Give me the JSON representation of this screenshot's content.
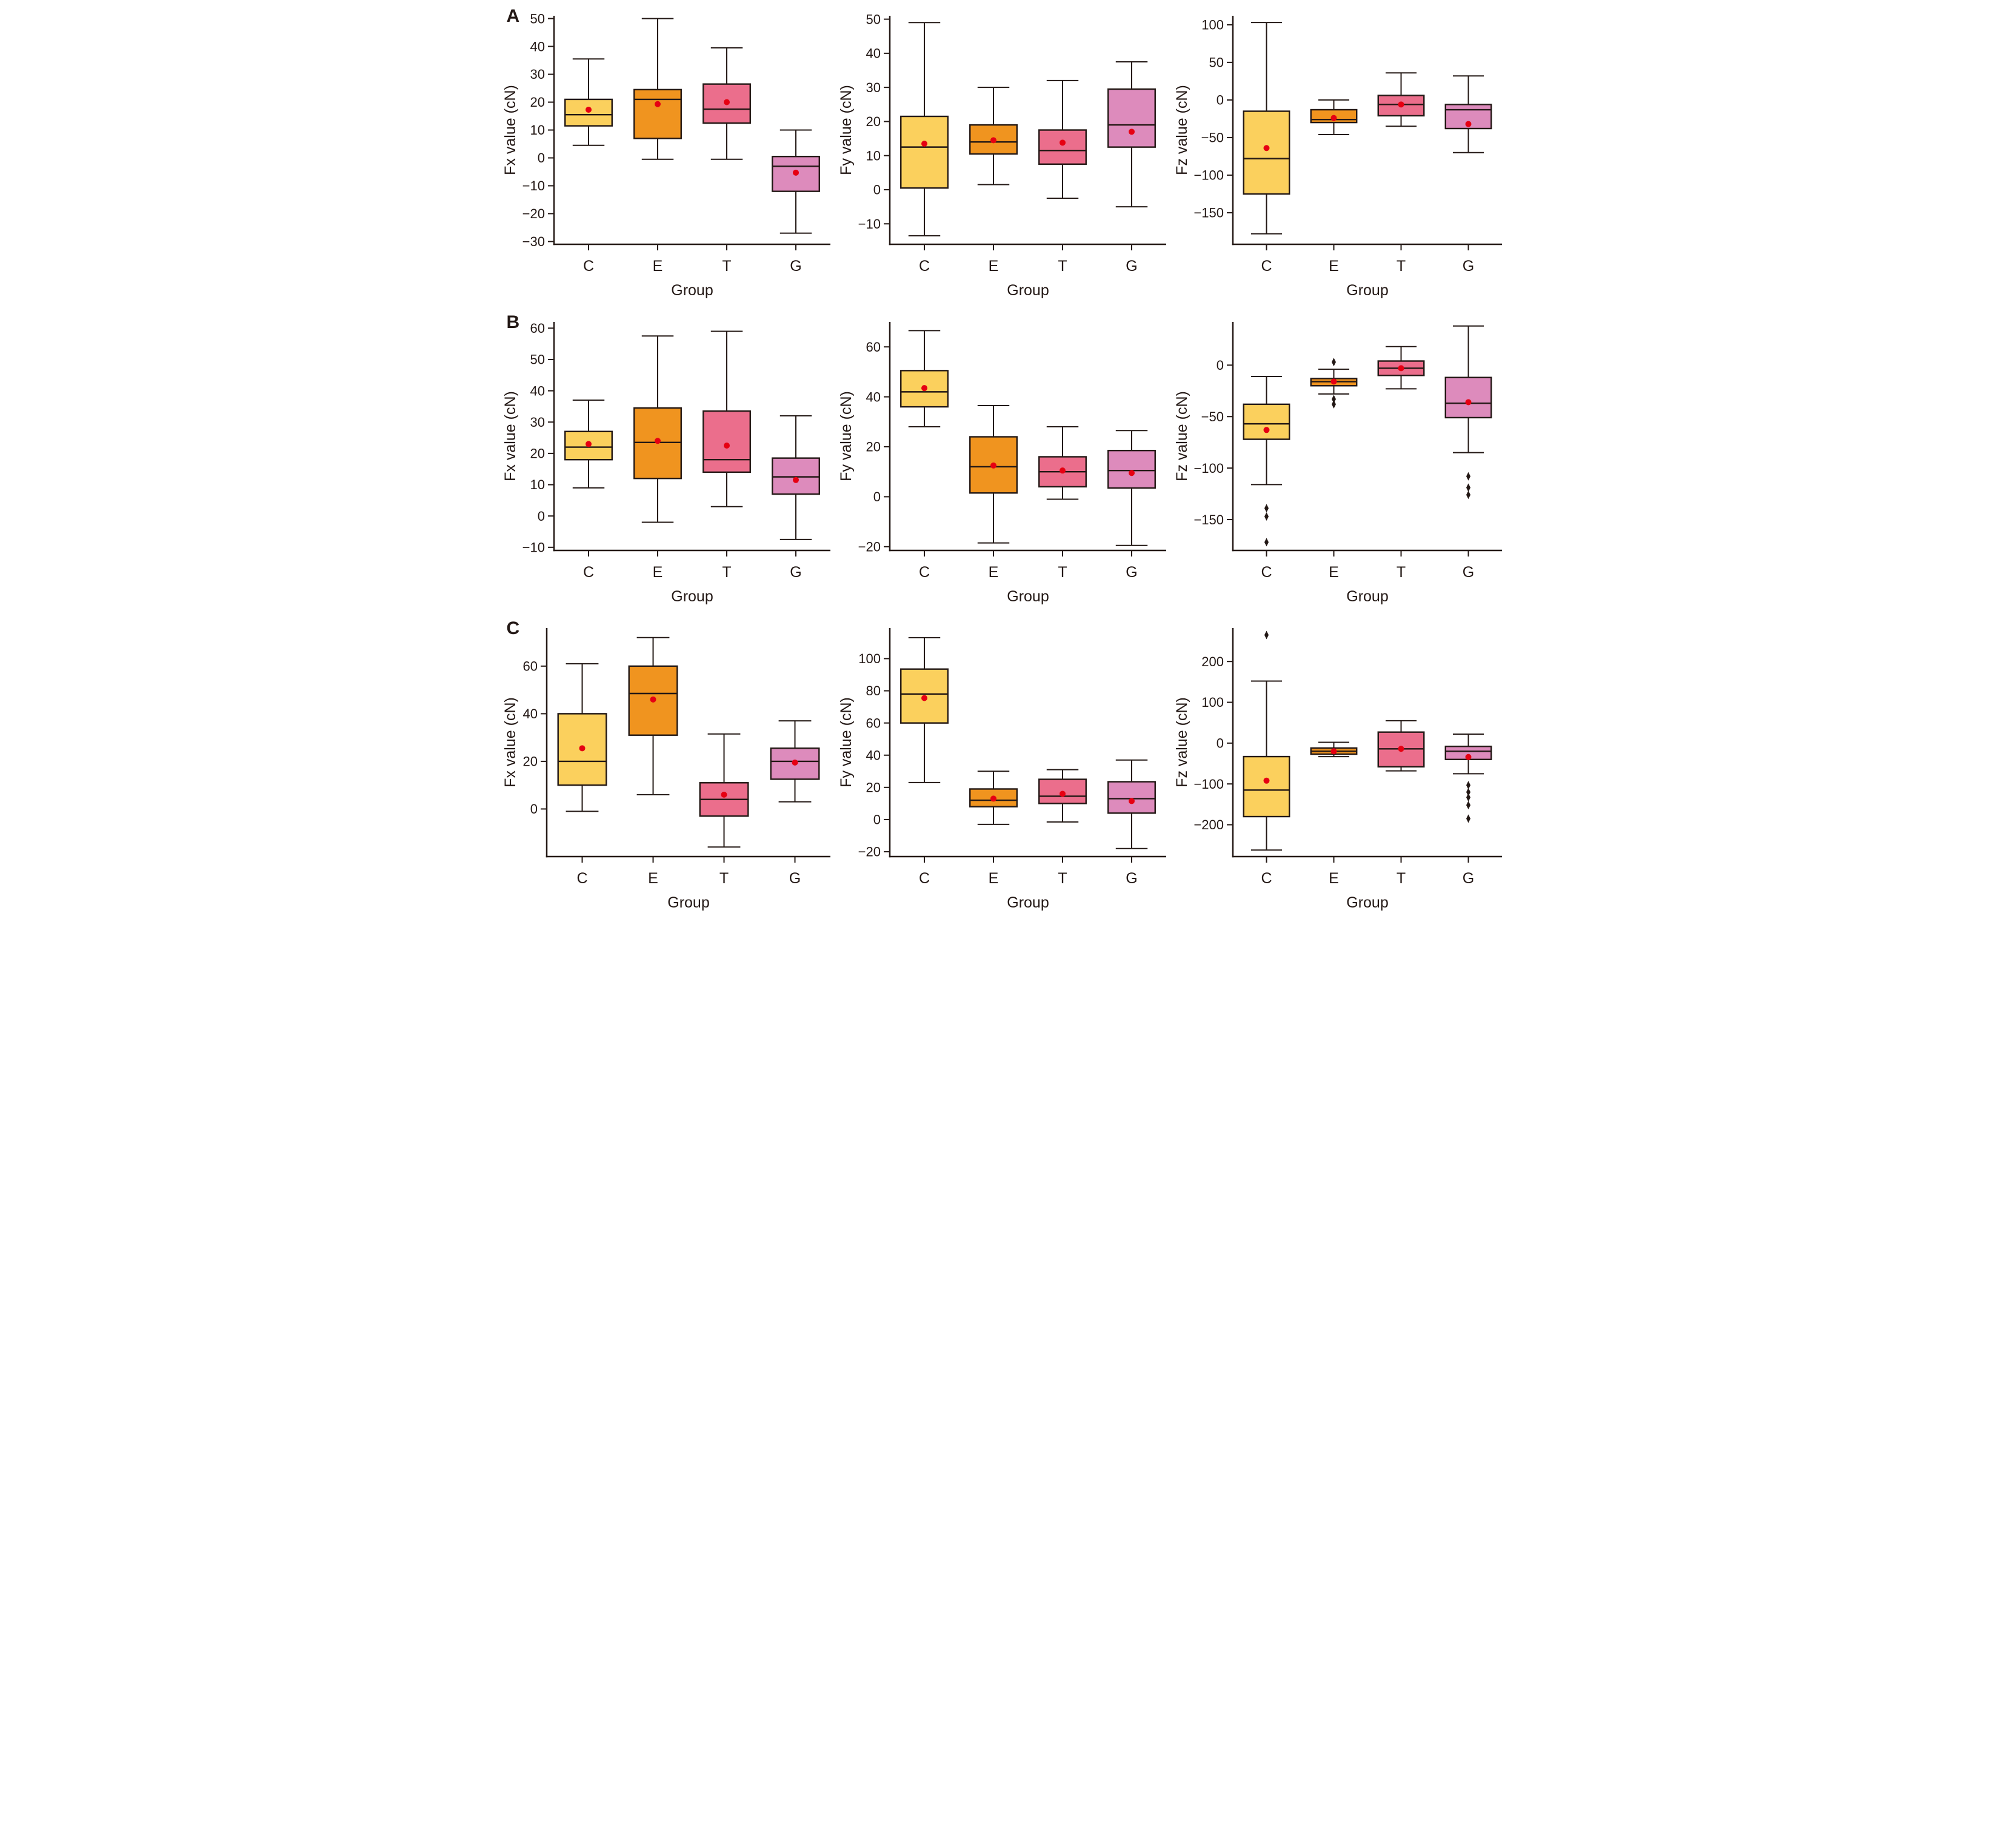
{
  "figure": {
    "background": "#ffffff",
    "rows": [
      {
        "label": "A"
      },
      {
        "label": "B"
      },
      {
        "label": "C"
      }
    ]
  },
  "colors": {
    "box_fills": {
      "C": "#FBD05D",
      "E": "#F0941F",
      "T": "#EB6E8C",
      "G": "#DD8BBC"
    },
    "box_edge": "#231815",
    "axis": "#231815",
    "text": "#231815",
    "mean_dot": "#E60012",
    "outlier": "#231815"
  },
  "chart_data": [
    {
      "id": "A-Fx",
      "row": "A",
      "type": "box",
      "xlabel": "Group",
      "ylabel": "Fx value (cN)",
      "categories": [
        "C",
        "E",
        "T",
        "G"
      ],
      "ylim": [
        -31,
        51
      ],
      "yticks": [
        -30,
        -20,
        -10,
        0,
        10,
        20,
        30,
        40,
        50
      ],
      "grid": false,
      "boxes": [
        {
          "group": "C",
          "whislo": 4.5,
          "q1": 11.5,
          "med": 15.5,
          "q3": 21,
          "whishi": 35.5,
          "mean": 17.3,
          "outliers": []
        },
        {
          "group": "E",
          "whislo": -0.5,
          "q1": 7,
          "med": 21,
          "q3": 24.5,
          "whishi": 50,
          "mean": 19.3,
          "outliers": []
        },
        {
          "group": "T",
          "whislo": -0.5,
          "q1": 12.5,
          "med": 17.5,
          "q3": 26.5,
          "whishi": 39.5,
          "mean": 20,
          "outliers": []
        },
        {
          "group": "G",
          "whislo": -27,
          "q1": -12,
          "med": -3,
          "q3": 0.5,
          "whishi": 10,
          "mean": -5.3,
          "outliers": []
        }
      ]
    },
    {
      "id": "A-Fy",
      "row": "A",
      "type": "box",
      "xlabel": "Group",
      "ylabel": "Fy value (cN)",
      "categories": [
        "C",
        "E",
        "T",
        "G"
      ],
      "ylim": [
        -16,
        51
      ],
      "yticks": [
        -10,
        0,
        10,
        20,
        30,
        40,
        50
      ],
      "grid": false,
      "boxes": [
        {
          "group": "C",
          "whislo": -13.5,
          "q1": 0.5,
          "med": 12.5,
          "q3": 21.5,
          "whishi": 49,
          "mean": 13.5,
          "outliers": []
        },
        {
          "group": "E",
          "whislo": 1.5,
          "q1": 10.5,
          "med": 14,
          "q3": 19,
          "whishi": 30,
          "mean": 14.5,
          "outliers": []
        },
        {
          "group": "T",
          "whislo": -2.5,
          "q1": 7.5,
          "med": 11.5,
          "q3": 17.5,
          "whishi": 32,
          "mean": 13.8,
          "outliers": []
        },
        {
          "group": "G",
          "whislo": -5,
          "q1": 12.5,
          "med": 19,
          "q3": 29.5,
          "whishi": 37.5,
          "mean": 17,
          "outliers": []
        }
      ]
    },
    {
      "id": "A-Fz",
      "row": "A",
      "type": "box",
      "xlabel": "Group",
      "ylabel": "Fz value (cN)",
      "categories": [
        "C",
        "E",
        "T",
        "G"
      ],
      "ylim": [
        -192,
        112
      ],
      "yticks": [
        -150,
        -100,
        -50,
        0,
        50,
        100
      ],
      "grid": false,
      "boxes": [
        {
          "group": "C",
          "whislo": -178,
          "q1": -125,
          "med": -78,
          "q3": -15,
          "whishi": 103,
          "mean": -64,
          "outliers": []
        },
        {
          "group": "E",
          "whislo": -46,
          "q1": -30,
          "med": -26,
          "q3": -13,
          "whishi": 0,
          "mean": -24,
          "outliers": []
        },
        {
          "group": "T",
          "whislo": -35,
          "q1": -21,
          "med": -6,
          "q3": 6,
          "whishi": 36,
          "mean": -6,
          "outliers": []
        },
        {
          "group": "G",
          "whislo": -70,
          "q1": -38,
          "med": -13,
          "q3": -6,
          "whishi": 32,
          "mean": -32,
          "outliers": []
        }
      ]
    },
    {
      "id": "B-Fx",
      "row": "B",
      "type": "box",
      "xlabel": "Group",
      "ylabel": "Fx value (cN)",
      "categories": [
        "C",
        "E",
        "T",
        "G"
      ],
      "ylim": [
        -11,
        62
      ],
      "yticks": [
        -10,
        0,
        10,
        20,
        30,
        40,
        50,
        60
      ],
      "grid": false,
      "boxes": [
        {
          "group": "C",
          "whislo": 9,
          "q1": 18,
          "med": 22,
          "q3": 27,
          "whishi": 37,
          "mean": 23,
          "outliers": []
        },
        {
          "group": "E",
          "whislo": -2,
          "q1": 12,
          "med": 23.5,
          "q3": 34.5,
          "whishi": 57.5,
          "mean": 24,
          "outliers": []
        },
        {
          "group": "T",
          "whislo": 3,
          "q1": 14,
          "med": 18,
          "q3": 33.5,
          "whishi": 59,
          "mean": 22.5,
          "outliers": []
        },
        {
          "group": "G",
          "whislo": -7.5,
          "q1": 7,
          "med": 12.5,
          "q3": 18.5,
          "whishi": 32,
          "mean": 11.5,
          "outliers": []
        }
      ]
    },
    {
      "id": "B-Fy",
      "row": "B",
      "type": "box",
      "xlabel": "Group",
      "ylabel": "Fy value (cN)",
      "categories": [
        "C",
        "E",
        "T",
        "G"
      ],
      "ylim": [
        -21.5,
        70
      ],
      "yticks": [
        -20,
        0,
        20,
        40,
        60
      ],
      "grid": false,
      "boxes": [
        {
          "group": "C",
          "whislo": 28,
          "q1": 36,
          "med": 42,
          "q3": 50.5,
          "whishi": 66.5,
          "mean": 43.5,
          "outliers": []
        },
        {
          "group": "E",
          "whislo": -18.5,
          "q1": 1.5,
          "med": 12,
          "q3": 24,
          "whishi": 36.5,
          "mean": 12.5,
          "outliers": []
        },
        {
          "group": "T",
          "whislo": -1,
          "q1": 4,
          "med": 10,
          "q3": 16,
          "whishi": 28,
          "mean": 10.5,
          "outliers": []
        },
        {
          "group": "G",
          "whislo": -19.5,
          "q1": 3.5,
          "med": 10.5,
          "q3": 18.5,
          "whishi": 26.5,
          "mean": 9.5,
          "outliers": []
        }
      ]
    },
    {
      "id": "B-Fz",
      "row": "B",
      "type": "box",
      "xlabel": "Group",
      "ylabel": "Fz value (cN)",
      "categories": [
        "C",
        "E",
        "T",
        "G"
      ],
      "ylim": [
        -180,
        42
      ],
      "yticks": [
        -150,
        -100,
        -50,
        0
      ],
      "grid": false,
      "boxes": [
        {
          "group": "C",
          "whislo": -116,
          "q1": -72,
          "med": -57,
          "q3": -38,
          "whishi": -11,
          "mean": -63,
          "outliers": [
            -139,
            -147,
            -172
          ]
        },
        {
          "group": "E",
          "whislo": -28,
          "q1": -20,
          "med": -16,
          "q3": -13,
          "whishi": -4,
          "mean": -16,
          "outliers": [
            3,
            -33,
            -38
          ]
        },
        {
          "group": "T",
          "whislo": -23,
          "q1": -10,
          "med": -3,
          "q3": 4,
          "whishi": 18,
          "mean": -3,
          "outliers": []
        },
        {
          "group": "G",
          "whislo": -85,
          "q1": -51,
          "med": -37,
          "q3": -12,
          "whishi": 38,
          "mean": -36,
          "outliers": [
            -108,
            -119,
            -126
          ]
        }
      ]
    },
    {
      "id": "C-Fx",
      "row": "C",
      "type": "box",
      "xlabel": "Group",
      "ylabel": "Fx value (cN)",
      "categories": [
        "C",
        "E",
        "T",
        "G"
      ],
      "ylim": [
        -20,
        76
      ],
      "yticks": [
        0,
        20,
        40,
        60
      ],
      "grid": false,
      "boxes": [
        {
          "group": "C",
          "whislo": -1,
          "q1": 10,
          "med": 20,
          "q3": 40,
          "whishi": 61,
          "mean": 25.5,
          "outliers": []
        },
        {
          "group": "E",
          "whislo": 6,
          "q1": 31,
          "med": 48.5,
          "q3": 60,
          "whishi": 72,
          "mean": 46,
          "outliers": []
        },
        {
          "group": "T",
          "whislo": -16,
          "q1": -3,
          "med": 4,
          "q3": 11,
          "whishi": 31.5,
          "mean": 6,
          "outliers": []
        },
        {
          "group": "G",
          "whislo": 3,
          "q1": 12.5,
          "med": 20,
          "q3": 25.5,
          "whishi": 37,
          "mean": 19.5,
          "outliers": []
        }
      ]
    },
    {
      "id": "C-Fy",
      "row": "C",
      "type": "box",
      "xlabel": "Group",
      "ylabel": "Fy value (cN)",
      "categories": [
        "C",
        "E",
        "T",
        "G"
      ],
      "ylim": [
        -23,
        119
      ],
      "yticks": [
        -20,
        0,
        20,
        40,
        60,
        80,
        100
      ],
      "grid": false,
      "boxes": [
        {
          "group": "C",
          "whislo": 23,
          "q1": 60,
          "med": 78,
          "q3": 93.5,
          "whishi": 113,
          "mean": 75.5,
          "outliers": []
        },
        {
          "group": "E",
          "whislo": -3,
          "q1": 8,
          "med": 12,
          "q3": 19,
          "whishi": 30,
          "mean": 13,
          "outliers": []
        },
        {
          "group": "T",
          "whislo": -1.5,
          "q1": 10,
          "med": 14.5,
          "q3": 25,
          "whishi": 31,
          "mean": 16,
          "outliers": []
        },
        {
          "group": "G",
          "whislo": -18,
          "q1": 4,
          "med": 13,
          "q3": 23.5,
          "whishi": 37,
          "mean": 11.5,
          "outliers": []
        }
      ]
    },
    {
      "id": "C-Fz",
      "row": "C",
      "type": "box",
      "xlabel": "Group",
      "ylabel": "Fz value (cN)",
      "categories": [
        "C",
        "E",
        "T",
        "G"
      ],
      "ylim": [
        -278,
        282
      ],
      "yticks": [
        -200,
        -100,
        0,
        100,
        200
      ],
      "grid": false,
      "boxes": [
        {
          "group": "C",
          "whislo": -262,
          "q1": -180,
          "med": -115,
          "q3": -33,
          "whishi": 152,
          "mean": -92,
          "outliers": [
            265
          ]
        },
        {
          "group": "E",
          "whislo": -33,
          "q1": -27,
          "med": -20,
          "q3": -12,
          "whishi": 2,
          "mean": -20,
          "outliers": []
        },
        {
          "group": "T",
          "whislo": -68,
          "q1": -58,
          "med": -14,
          "q3": 27,
          "whishi": 55,
          "mean": -14,
          "outliers": []
        },
        {
          "group": "G",
          "whislo": -75,
          "q1": -40,
          "med": -20,
          "q3": -8,
          "whishi": 22,
          "mean": -34,
          "outliers": [
            -103,
            -120,
            -133,
            -152,
            -185
          ]
        }
      ]
    }
  ]
}
